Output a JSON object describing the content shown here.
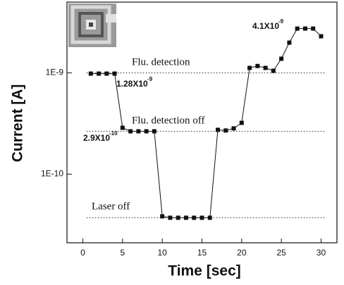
{
  "chart_data": {
    "type": "line",
    "x_label": "Time [sec]",
    "y_label": "Current [A]",
    "x": [
      1,
      2,
      3,
      4,
      5,
      6,
      7,
      8,
      9,
      10,
      11,
      12,
      13,
      14,
      15,
      16,
      17,
      18,
      19,
      20,
      21,
      22,
      23,
      24,
      25,
      26,
      27,
      28,
      29,
      30
    ],
    "values": [
      9.84e-10,
      9.84e-10,
      9.84e-10,
      9.84e-10,
      2.87e-10,
      2.65e-10,
      2.65e-10,
      2.65e-10,
      2.65e-10,
      3.83e-11,
      3.71e-11,
      3.71e-11,
      3.71e-11,
      3.71e-11,
      3.71e-11,
      3.71e-11,
      2.74e-10,
      2.7e-10,
      2.83e-10,
      3.21e-10,
      1.12e-09,
      1.17e-09,
      1.12e-09,
      1.05e-09,
      1.38e-09,
      1.99e-09,
      2.74e-09,
      2.74e-09,
      2.74e-09,
      2.3e-09
    ],
    "color": "#111111",
    "log_y": true,
    "xlim": [
      -2,
      32
    ],
    "xticks": [
      0,
      5,
      10,
      15,
      20,
      25,
      30
    ],
    "ylim": [
      2.1e-11,
      5e-09
    ],
    "yticks": [
      {
        "value": 1e-09,
        "label": "1E-9"
      },
      {
        "value": 1e-10,
        "label": "1E-10"
      }
    ],
    "reference_lines": [
      {
        "value": 1e-09,
        "label": "Flu. detection"
      },
      {
        "value": 2.65e-10,
        "label": "Flu. detection off"
      },
      {
        "value": 3.71e-11,
        "label": "Laser off"
      }
    ],
    "annotations": [
      {
        "text": "1.28X10",
        "exponent": "-9"
      },
      {
        "text": "2.9X10",
        "exponent": "-10"
      },
      {
        "text": "4.1X10",
        "exponent": "-9"
      }
    ]
  }
}
